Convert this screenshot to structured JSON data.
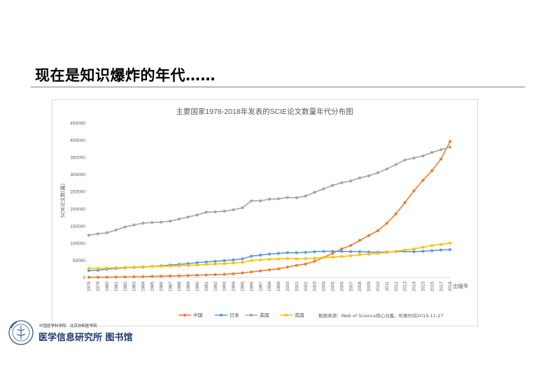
{
  "slide": {
    "title": "现在是知识爆炸的年代……"
  },
  "logo": {
    "line1": "中国医学科学院　北京协和医学院",
    "line2": "医学信息研究所 图书馆",
    "seal_color": "#3b5b8c"
  },
  "chart_data": {
    "type": "line",
    "title": "主要国家1978-2018年发表的SCIE论文数量年代分布图",
    "xlabel": "出版年",
    "ylabel": "SCIE论文数(篇)",
    "ylim": [
      0,
      450000
    ],
    "yticks": [
      "0",
      "50000",
      "100000",
      "150000",
      "200000",
      "250000",
      "300000",
      "350000",
      "400000",
      "450000"
    ],
    "grid": false,
    "legend_position": "bottom",
    "source_note": "数据来源：Web of Science核心合集，检索时间2019-11-27",
    "categories": [
      "1978",
      "1979",
      "1980",
      "1981",
      "1982",
      "1983",
      "1984",
      "1985",
      "1986",
      "1987",
      "1988",
      "1989",
      "1990",
      "1991",
      "1992",
      "1993",
      "1994",
      "1995",
      "1996",
      "1997",
      "1998",
      "1999",
      "2000",
      "2001",
      "2002",
      "2003",
      "2004",
      "2005",
      "2006",
      "2007",
      "2008",
      "2009",
      "2010",
      "2011",
      "2012",
      "2013",
      "2014",
      "2015",
      "2016",
      "2017",
      "2018"
    ],
    "series": [
      {
        "name": "中国",
        "color": "#ed7d31",
        "values": [
          200,
          300,
          500,
          900,
          1300,
          1800,
          2300,
          2900,
          3400,
          4000,
          4700,
          5500,
          6400,
          7200,
          8000,
          9000,
          10500,
          13000,
          16000,
          19000,
          22000,
          25000,
          30000,
          35000,
          39000,
          47000,
          58000,
          70000,
          83000,
          93000,
          108000,
          122000,
          136000,
          158000,
          185000,
          218000,
          252000,
          283000,
          311000,
          345000,
          396000
        ]
      },
      {
        "name": "日本",
        "color": "#5b9bd5",
        "values": [
          20000,
          21000,
          24000,
          26000,
          28000,
          29000,
          30000,
          32000,
          34000,
          36000,
          38000,
          40000,
          43000,
          45000,
          47000,
          49000,
          51000,
          54000,
          62000,
          65000,
          68000,
          70000,
          72000,
          72000,
          73000,
          75000,
          76000,
          76000,
          76000,
          75000,
          75000,
          74000,
          73000,
          74000,
          75000,
          76000,
          75000,
          76000,
          78000,
          80000,
          81000
        ]
      },
      {
        "name": "美国",
        "color": "#a5a5a5",
        "values": [
          123000,
          127000,
          130000,
          138000,
          147000,
          153000,
          158000,
          160000,
          161000,
          164000,
          170000,
          176000,
          182000,
          190000,
          191000,
          193000,
          197000,
          203000,
          223000,
          223000,
          228000,
          229000,
          233000,
          232000,
          237000,
          248000,
          258000,
          268000,
          276000,
          281000,
          290000,
          296000,
          305000,
          316000,
          329000,
          342000,
          348000,
          354000,
          364000,
          372000,
          380000
        ]
      },
      {
        "name": "英国",
        "color": "#ffc000",
        "values": [
          26000,
          26500,
          27000,
          28000,
          29000,
          30000,
          31000,
          32000,
          32500,
          33000,
          34000,
          35000,
          36000,
          38000,
          39000,
          40000,
          42000,
          44000,
          49000,
          51000,
          53000,
          54000,
          55000,
          54000,
          55000,
          56000,
          58000,
          59000,
          61000,
          63000,
          66000,
          68000,
          70000,
          73000,
          76000,
          80000,
          83000,
          88000,
          93000,
          96000,
          100000
        ]
      }
    ]
  }
}
